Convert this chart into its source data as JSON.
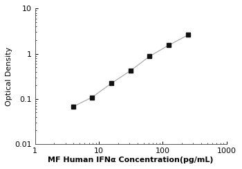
{
  "x_data": [
    4,
    7.8,
    15.6,
    31.25,
    62.5,
    125,
    250
  ],
  "y_data": [
    0.068,
    0.108,
    0.22,
    0.42,
    0.88,
    1.55,
    2.6
  ],
  "xlim": [
    1,
    1000
  ],
  "ylim": [
    0.01,
    10
  ],
  "xlabel": "MF Human IFNα Concentration(pg/mL)",
  "ylabel": "Optical Density",
  "marker": "s",
  "marker_color": "#111111",
  "line_color": "#aaaaaa",
  "marker_size": 4.5,
  "line_width": 0.9,
  "background_color": "#ffffff",
  "xlabel_fontsize": 8,
  "ylabel_fontsize": 8,
  "tick_fontsize": 8,
  "ytick_labels": [
    "0.01",
    "0.1",
    "1",
    "10"
  ],
  "ytick_values": [
    0.01,
    0.1,
    1,
    10
  ],
  "xtick_labels": [
    "1",
    "10",
    "100",
    "1000"
  ],
  "xtick_values": [
    1,
    10,
    100,
    1000
  ]
}
